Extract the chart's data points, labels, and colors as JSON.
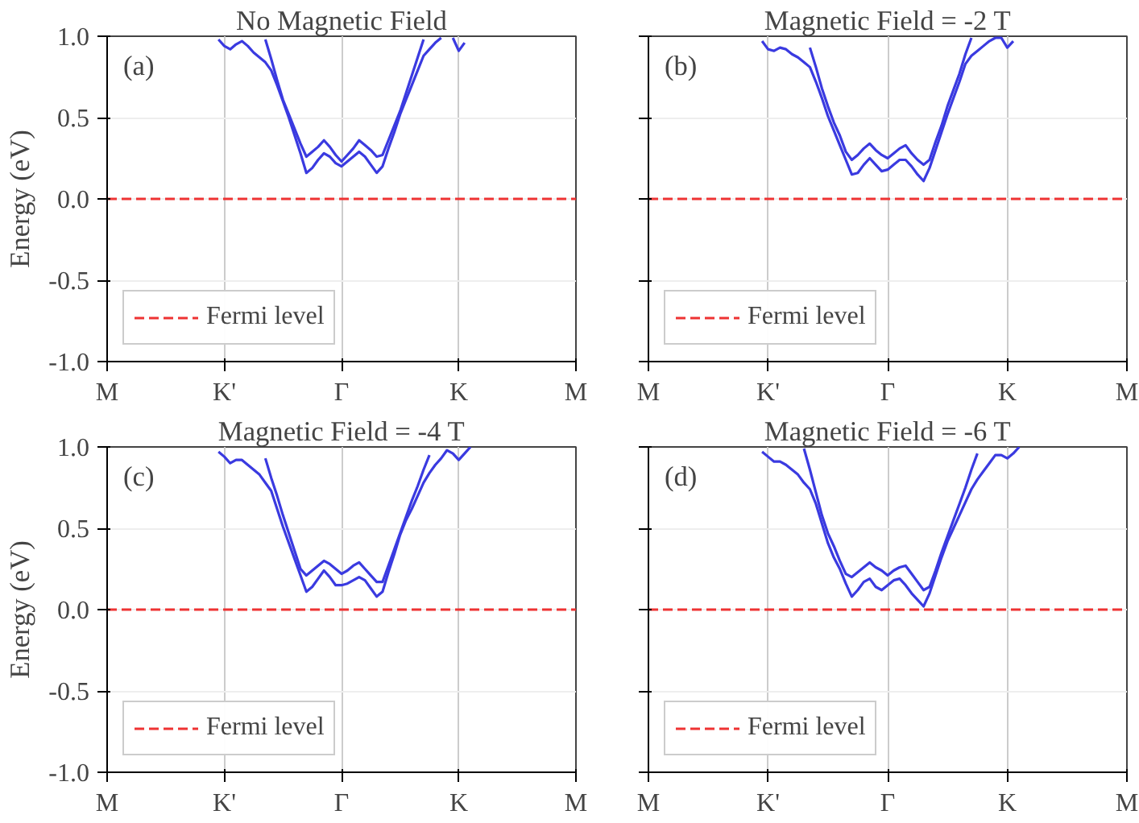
{
  "chart_data": [
    {
      "type": "line",
      "title": "No Magnetic Field",
      "ylabel": "Energy (eV)",
      "annotations": [
        "(a)"
      ],
      "ylim": [
        -1,
        1
      ],
      "categories": [
        "M",
        null,
        null,
        null,
        null,
        null,
        null,
        null,
        null,
        null,
        null,
        null,
        null,
        null,
        null,
        null,
        null,
        null,
        null,
        null,
        "K'",
        null,
        null,
        null,
        null,
        null,
        null,
        null,
        null,
        null,
        null,
        null,
        null,
        null,
        null,
        null,
        null,
        null,
        null,
        null,
        "Γ",
        null,
        null,
        null,
        null,
        null,
        null,
        null,
        null,
        null,
        null,
        null,
        null,
        null,
        null,
        null,
        null,
        null,
        null,
        null,
        "K",
        null,
        null,
        null,
        null,
        null,
        null,
        null,
        null,
        null,
        null,
        null,
        null,
        null,
        null,
        null,
        null,
        null,
        null,
        null,
        "M"
      ],
      "yticks": [
        {
          "value": -1,
          "label": "-1.0"
        },
        {
          "value": -0.5,
          "label": "-0.5"
        },
        {
          "value": 0,
          "label": "0.0"
        },
        {
          "value": 0.5,
          "label": "0.5"
        },
        {
          "value": 1,
          "label": "1.0"
        }
      ],
      "grid": true,
      "legend": "bottom left",
      "ref_lines": [
        {
          "axis": "y",
          "value": 0,
          "label": "Fermi level",
          "color": "#ee3333",
          "line_style": "dashed"
        }
      ],
      "series": [
        {
          "color": "#3a3ae0",
          "values": [
            null,
            null,
            null,
            null,
            null,
            null,
            null,
            null,
            null,
            null,
            null,
            null,
            null,
            null,
            null,
            null,
            null,
            null,
            null,
            0.98,
            0.94,
            0.92,
            0.95,
            0.97,
            0.94,
            0.9,
            0.87,
            0.84,
            0.79,
            0.7,
            0.6,
            0.5,
            0.39,
            0.28,
            0.16,
            0.19,
            0.24,
            0.28,
            0.26,
            0.22,
            0.2,
            0.23,
            0.26,
            0.29,
            0.26,
            0.21,
            0.16,
            0.2,
            0.31,
            0.41,
            0.52,
            0.61,
            0.7,
            0.79,
            0.88,
            0.92,
            0.96,
            0.99,
            null,
            0.99,
            0.91,
            0.96,
            null,
            null,
            null,
            null,
            null,
            null,
            null,
            null,
            null,
            null,
            null,
            null,
            null,
            null,
            null,
            null,
            null,
            null,
            null
          ]
        },
        {
          "color": "#3a3ae0",
          "values": [
            null,
            null,
            null,
            null,
            null,
            null,
            null,
            null,
            null,
            null,
            null,
            null,
            null,
            null,
            null,
            null,
            null,
            null,
            null,
            null,
            null,
            null,
            null,
            null,
            null,
            null,
            null,
            0.98,
            0.86,
            0.73,
            0.61,
            0.52,
            0.43,
            0.34,
            0.26,
            0.29,
            0.32,
            0.36,
            0.32,
            0.27,
            0.23,
            0.27,
            0.31,
            0.36,
            0.33,
            0.3,
            0.26,
            0.27,
            0.36,
            0.45,
            0.54,
            0.65,
            0.76,
            0.87,
            0.98,
            null,
            null,
            null,
            null,
            null,
            null,
            null,
            null,
            null,
            null,
            null,
            null,
            null,
            null,
            null,
            null,
            null,
            null,
            null,
            null,
            null,
            null,
            null,
            null,
            null,
            null
          ]
        }
      ]
    },
    {
      "type": "line",
      "title": "Magnetic Field = -2 T",
      "annotations": [
        "(b)"
      ],
      "ylim": [
        -1,
        1
      ],
      "tick_labels": "x",
      "categories": [
        "M",
        null,
        null,
        null,
        null,
        null,
        null,
        null,
        null,
        null,
        null,
        null,
        null,
        null,
        null,
        null,
        null,
        null,
        null,
        null,
        "K'",
        null,
        null,
        null,
        null,
        null,
        null,
        null,
        null,
        null,
        null,
        null,
        null,
        null,
        null,
        null,
        null,
        null,
        null,
        null,
        "Γ",
        null,
        null,
        null,
        null,
        null,
        null,
        null,
        null,
        null,
        null,
        null,
        null,
        null,
        null,
        null,
        null,
        null,
        null,
        null,
        "K",
        null,
        null,
        null,
        null,
        null,
        null,
        null,
        null,
        null,
        null,
        null,
        null,
        null,
        null,
        null,
        null,
        null,
        null,
        null,
        "M"
      ],
      "yticks": [
        {
          "value": -1,
          "label": null
        },
        {
          "value": -0.5,
          "label": null
        },
        {
          "value": 0,
          "label": null
        },
        {
          "value": 0.5,
          "label": null
        },
        {
          "value": 1,
          "label": null
        }
      ],
      "grid": true,
      "legend": "bottom left",
      "ref_lines": [
        {
          "axis": "y",
          "value": 0,
          "label": "Fermi level",
          "color": "#ee3333",
          "line_style": "dashed"
        }
      ],
      "series": [
        {
          "color": "#3a3ae0",
          "values": [
            null,
            null,
            null,
            null,
            null,
            null,
            null,
            null,
            null,
            null,
            null,
            null,
            null,
            null,
            null,
            null,
            null,
            null,
            null,
            0.97,
            0.92,
            0.91,
            0.93,
            0.92,
            0.89,
            0.87,
            0.84,
            0.81,
            0.72,
            0.62,
            0.51,
            0.42,
            0.33,
            0.24,
            0.15,
            0.16,
            0.21,
            0.25,
            0.21,
            0.17,
            0.18,
            0.21,
            0.24,
            0.24,
            0.2,
            0.15,
            0.11,
            0.19,
            0.3,
            0.41,
            0.52,
            0.62,
            0.72,
            0.83,
            0.88,
            0.91,
            0.94,
            0.97,
            0.99,
            0.99,
            0.93,
            0.97,
            null,
            null,
            null,
            null,
            null,
            null,
            null,
            null,
            null,
            null,
            null,
            null,
            null,
            null,
            null,
            null,
            null,
            null,
            null
          ]
        },
        {
          "color": "#3a3ae0",
          "values": [
            null,
            null,
            null,
            null,
            null,
            null,
            null,
            null,
            null,
            null,
            null,
            null,
            null,
            null,
            null,
            null,
            null,
            null,
            null,
            null,
            null,
            null,
            null,
            null,
            null,
            null,
            null,
            0.93,
            0.81,
            0.68,
            0.57,
            0.47,
            0.39,
            0.29,
            0.24,
            0.27,
            0.31,
            0.34,
            0.3,
            0.27,
            0.25,
            0.28,
            0.31,
            0.33,
            0.28,
            0.24,
            0.21,
            0.24,
            0.35,
            0.45,
            0.57,
            0.67,
            0.77,
            0.89,
            0.99,
            null,
            null,
            null,
            null,
            null,
            null,
            null,
            null,
            null,
            null,
            null,
            null,
            null,
            null,
            null,
            null,
            null,
            null,
            null,
            null,
            null,
            null,
            null,
            null,
            null,
            null
          ]
        }
      ]
    },
    {
      "type": "line",
      "title": "Magnetic Field = -4 T",
      "ylabel": "Energy (eV)",
      "annotations": [
        "(c)"
      ],
      "ylim": [
        -1,
        1
      ],
      "categories": [
        "M",
        null,
        null,
        null,
        null,
        null,
        null,
        null,
        null,
        null,
        null,
        null,
        null,
        null,
        null,
        null,
        null,
        null,
        null,
        null,
        "K'",
        null,
        null,
        null,
        null,
        null,
        null,
        null,
        null,
        null,
        null,
        null,
        null,
        null,
        null,
        null,
        null,
        null,
        null,
        null,
        "Γ",
        null,
        null,
        null,
        null,
        null,
        null,
        null,
        null,
        null,
        null,
        null,
        null,
        null,
        null,
        null,
        null,
        null,
        null,
        null,
        "K",
        null,
        null,
        null,
        null,
        null,
        null,
        null,
        null,
        null,
        null,
        null,
        null,
        null,
        null,
        null,
        null,
        null,
        null,
        null,
        "M"
      ],
      "yticks": [
        {
          "value": -1,
          "label": "-1.0"
        },
        {
          "value": -0.5,
          "label": "-0.5"
        },
        {
          "value": 0,
          "label": "0.0"
        },
        {
          "value": 0.5,
          "label": "0.5"
        },
        {
          "value": 1,
          "label": "1.0"
        }
      ],
      "grid": true,
      "legend": "bottom left",
      "ref_lines": [
        {
          "axis": "y",
          "value": 0,
          "label": "Fermi level",
          "color": "#ee3333",
          "line_style": "dashed"
        }
      ],
      "series": [
        {
          "color": "#3a3ae0",
          "values": [
            null,
            null,
            null,
            null,
            null,
            null,
            null,
            null,
            null,
            null,
            null,
            null,
            null,
            null,
            null,
            null,
            null,
            null,
            null,
            0.97,
            0.94,
            0.9,
            0.92,
            0.92,
            0.89,
            0.86,
            0.83,
            0.78,
            0.73,
            0.62,
            0.51,
            0.41,
            0.31,
            0.21,
            0.11,
            0.14,
            0.19,
            0.24,
            0.2,
            0.15,
            0.15,
            0.16,
            0.18,
            0.2,
            0.18,
            0.13,
            0.08,
            0.11,
            0.23,
            0.34,
            0.46,
            0.55,
            0.62,
            0.7,
            0.78,
            0.84,
            0.89,
            0.93,
            0.98,
            0.96,
            0.92,
            0.96,
            1.0,
            null,
            null,
            null,
            null,
            null,
            null,
            null,
            null,
            null,
            null,
            null,
            null,
            null,
            null,
            null,
            null,
            null,
            null
          ]
        },
        {
          "color": "#3a3ae0",
          "values": [
            null,
            null,
            null,
            null,
            null,
            null,
            null,
            null,
            null,
            null,
            null,
            null,
            null,
            null,
            null,
            null,
            null,
            null,
            null,
            null,
            null,
            null,
            null,
            null,
            null,
            null,
            null,
            0.93,
            0.81,
            0.7,
            0.58,
            0.47,
            0.36,
            0.25,
            0.21,
            0.24,
            0.27,
            0.3,
            0.28,
            0.25,
            0.22,
            0.24,
            0.27,
            0.29,
            0.25,
            0.21,
            0.17,
            0.17,
            0.27,
            0.37,
            0.47,
            0.57,
            0.67,
            0.76,
            0.86,
            0.95,
            null,
            null,
            null,
            null,
            null,
            null,
            null,
            null,
            null,
            null,
            null,
            null,
            null,
            null,
            null,
            null,
            null,
            null,
            null,
            null,
            null,
            null,
            null,
            null,
            null
          ]
        }
      ]
    },
    {
      "type": "line",
      "title": "Magnetic Field = -6 T",
      "annotations": [
        "(d)"
      ],
      "ylim": [
        -1,
        1
      ],
      "tick_labels": "x",
      "categories": [
        "M",
        null,
        null,
        null,
        null,
        null,
        null,
        null,
        null,
        null,
        null,
        null,
        null,
        null,
        null,
        null,
        null,
        null,
        null,
        null,
        "K'",
        null,
        null,
        null,
        null,
        null,
        null,
        null,
        null,
        null,
        null,
        null,
        null,
        null,
        null,
        null,
        null,
        null,
        null,
        null,
        "Γ",
        null,
        null,
        null,
        null,
        null,
        null,
        null,
        null,
        null,
        null,
        null,
        null,
        null,
        null,
        null,
        null,
        null,
        null,
        null,
        "K",
        null,
        null,
        null,
        null,
        null,
        null,
        null,
        null,
        null,
        null,
        null,
        null,
        null,
        null,
        null,
        null,
        null,
        null,
        null,
        "M"
      ],
      "yticks": [
        {
          "value": -1,
          "label": null
        },
        {
          "value": -0.5,
          "label": null
        },
        {
          "value": 0,
          "label": null
        },
        {
          "value": 0.5,
          "label": null
        },
        {
          "value": 1,
          "label": null
        }
      ],
      "grid": true,
      "legend": "bottom left",
      "ref_lines": [
        {
          "axis": "y",
          "value": 0,
          "label": "Fermi level",
          "color": "#ee3333",
          "line_style": "dashed"
        }
      ],
      "series": [
        {
          "color": "#3a3ae0",
          "values": [
            null,
            null,
            null,
            null,
            null,
            null,
            null,
            null,
            null,
            null,
            null,
            null,
            null,
            null,
            null,
            null,
            null,
            null,
            null,
            0.97,
            0.94,
            0.91,
            0.91,
            0.89,
            0.86,
            0.83,
            0.78,
            0.74,
            0.65,
            0.53,
            0.41,
            0.32,
            0.25,
            0.16,
            0.08,
            0.12,
            0.17,
            0.19,
            0.14,
            0.12,
            0.15,
            0.18,
            0.19,
            0.15,
            0.1,
            0.06,
            0.02,
            0.1,
            0.21,
            0.32,
            0.42,
            0.5,
            0.58,
            0.66,
            0.74,
            0.8,
            0.85,
            0.9,
            0.95,
            0.95,
            0.93,
            0.96,
            1.0,
            null,
            null,
            null,
            null,
            null,
            null,
            null,
            null,
            null,
            null,
            null,
            null,
            null,
            null,
            null,
            null,
            null,
            null
          ]
        },
        {
          "color": "#3a3ae0",
          "values": [
            null,
            null,
            null,
            null,
            null,
            null,
            null,
            null,
            null,
            null,
            null,
            null,
            null,
            null,
            null,
            null,
            null,
            null,
            null,
            null,
            null,
            null,
            null,
            null,
            null,
            null,
            0.99,
            0.86,
            0.72,
            0.58,
            0.47,
            0.39,
            0.3,
            0.22,
            0.2,
            0.23,
            0.26,
            0.29,
            0.26,
            0.24,
            0.21,
            0.24,
            0.26,
            0.27,
            0.22,
            0.17,
            0.12,
            0.14,
            0.24,
            0.35,
            0.45,
            0.55,
            0.65,
            0.75,
            0.86,
            0.96,
            null,
            null,
            null,
            null,
            null,
            null,
            null,
            null,
            null,
            null,
            null,
            null,
            null,
            null,
            null,
            null,
            null,
            null,
            null,
            null,
            null,
            null,
            null,
            null,
            null
          ]
        }
      ]
    }
  ]
}
